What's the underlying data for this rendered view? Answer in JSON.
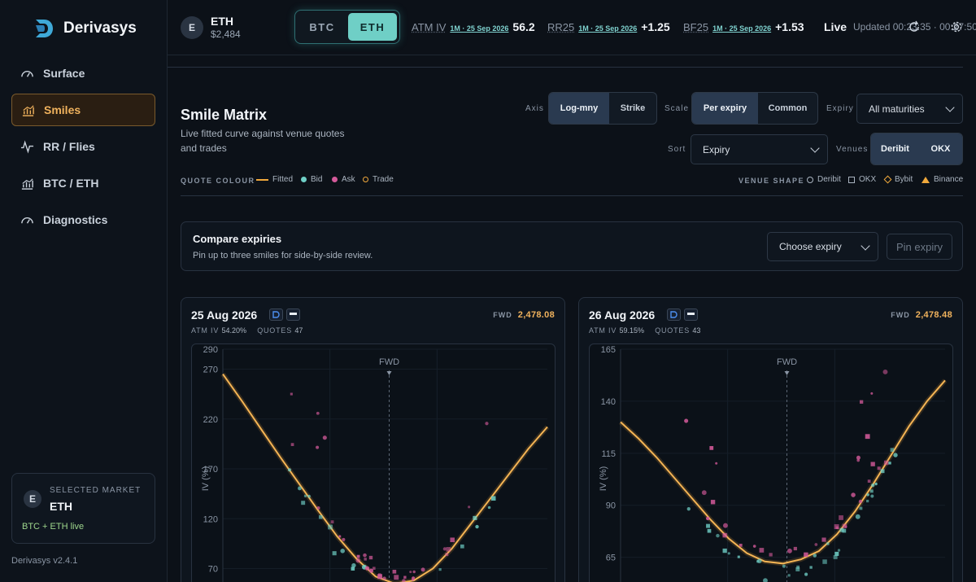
{
  "app": {
    "name": "Derivasys",
    "version": "Derivasys v2.4.1"
  },
  "sidebar": {
    "items": [
      {
        "label": "Surface",
        "icon": "gauge-icon"
      },
      {
        "label": "Smiles",
        "icon": "chart-icon",
        "active": true
      },
      {
        "label": "RR / Flies",
        "icon": "pulse-icon"
      },
      {
        "label": "BTC / ETH",
        "icon": "chart-icon"
      },
      {
        "label": "Diagnostics",
        "icon": "gauge-icon"
      }
    ],
    "market_card": {
      "avatar": "E",
      "label": "SELECTED MARKET",
      "value": "ETH",
      "status": "BTC + ETH live"
    }
  },
  "topbar": {
    "avatar": "E",
    "asset": "ETH",
    "price": "$2,484",
    "toggle": [
      "BTC",
      "ETH"
    ],
    "toggle_active": "ETH",
    "metrics": [
      {
        "name": "ATM IV",
        "tag": "1M · 25 Sep 2026",
        "value": "56.2"
      },
      {
        "name": "RR25",
        "tag": "1M · 25 Sep 2026",
        "value": "+1.25"
      },
      {
        "name": "BF25",
        "tag": "1M · 25 Sep 2026",
        "value": "+1.53"
      }
    ],
    "live": "Live",
    "updated": "Updated 00:23:35 · 00:27:50"
  },
  "main": {
    "title": "Smile Matrix",
    "subtitle": "Live fitted curve against venue quotes and trades",
    "axis": {
      "label": "Axis",
      "options": [
        "Log-mny",
        "Strike"
      ],
      "active": "Log-mny"
    },
    "scale": {
      "label": "Scale",
      "options": [
        "Per expiry",
        "Common"
      ],
      "active": "Per expiry"
    },
    "expiry": {
      "label": "Expiry",
      "value": "All maturities"
    },
    "sort": {
      "label": "Sort",
      "value": "Expiry"
    },
    "venues": {
      "label": "Venues",
      "options": [
        "Deribit",
        "OKX"
      ],
      "active": [
        "Deribit",
        "OKX"
      ]
    },
    "quote_colour": {
      "title": "QUOTE COLOUR",
      "items": [
        {
          "label": "Fitted",
          "color": "#f0a83c"
        },
        {
          "label": "Bid",
          "color": "#6fcfc6"
        },
        {
          "label": "Ask",
          "color": "#d45a9a"
        },
        {
          "label": "Trade",
          "color": "#f0a83c"
        }
      ]
    },
    "venue_shape": {
      "title": "VENUE SHAPE",
      "items": [
        {
          "label": "Deribit",
          "shape": "circle"
        },
        {
          "label": "OKX",
          "shape": "square"
        },
        {
          "label": "Bybit",
          "shape": "diamond"
        },
        {
          "label": "Binance",
          "shape": "triangle"
        }
      ]
    },
    "compare": {
      "title": "Compare expiries",
      "subtitle": "Pin up to three smiles for side-by-side review.",
      "select": "Choose expiry",
      "pin": "Pin expiry"
    },
    "cards": [
      {
        "title": "25 Aug 2026",
        "atm_label": "ATM IV",
        "atm_iv": "54.20%",
        "quotes_label": "QUOTES",
        "quotes": "47",
        "fwd_label": "FWD",
        "fwd": "2,478.08",
        "y_ticks": [
          "290",
          "270",
          "220",
          "170",
          "120",
          "70"
        ],
        "y_label": "IV (%)",
        "fwd_marker": "FWD"
      },
      {
        "title": "26 Aug 2026",
        "atm_label": "ATM IV",
        "atm_iv": "59.15%",
        "quotes_label": "QUOTES",
        "quotes": "43",
        "fwd_label": "FWD",
        "fwd": "2,478.48",
        "y_ticks": [
          "165",
          "140",
          "115",
          "90",
          "65"
        ],
        "y_label": "IV (%)",
        "fwd_marker": "FWD"
      }
    ]
  },
  "chart_data": [
    {
      "type": "scatter",
      "title": "25 Aug 2026",
      "ylabel": "IV (%)",
      "ylim": [
        50,
        290
      ],
      "series": [
        {
          "name": "Fitted",
          "values": [
            265,
            238,
            210,
            182,
            155,
            128,
            102,
            80,
            62,
            55,
            58,
            70,
            90,
            115,
            140,
            165,
            190,
            212
          ]
        }
      ]
    },
    {
      "type": "scatter",
      "title": "26 Aug 2026",
      "ylabel": "IV (%)",
      "ylim": [
        50,
        165
      ],
      "series": [
        {
          "name": "Fitted",
          "values": [
            130,
            122,
            113,
            103,
            93,
            83,
            74,
            67,
            63,
            62,
            64,
            68,
            76,
            87,
            100,
            114,
            128,
            140,
            150
          ]
        }
      ]
    }
  ]
}
